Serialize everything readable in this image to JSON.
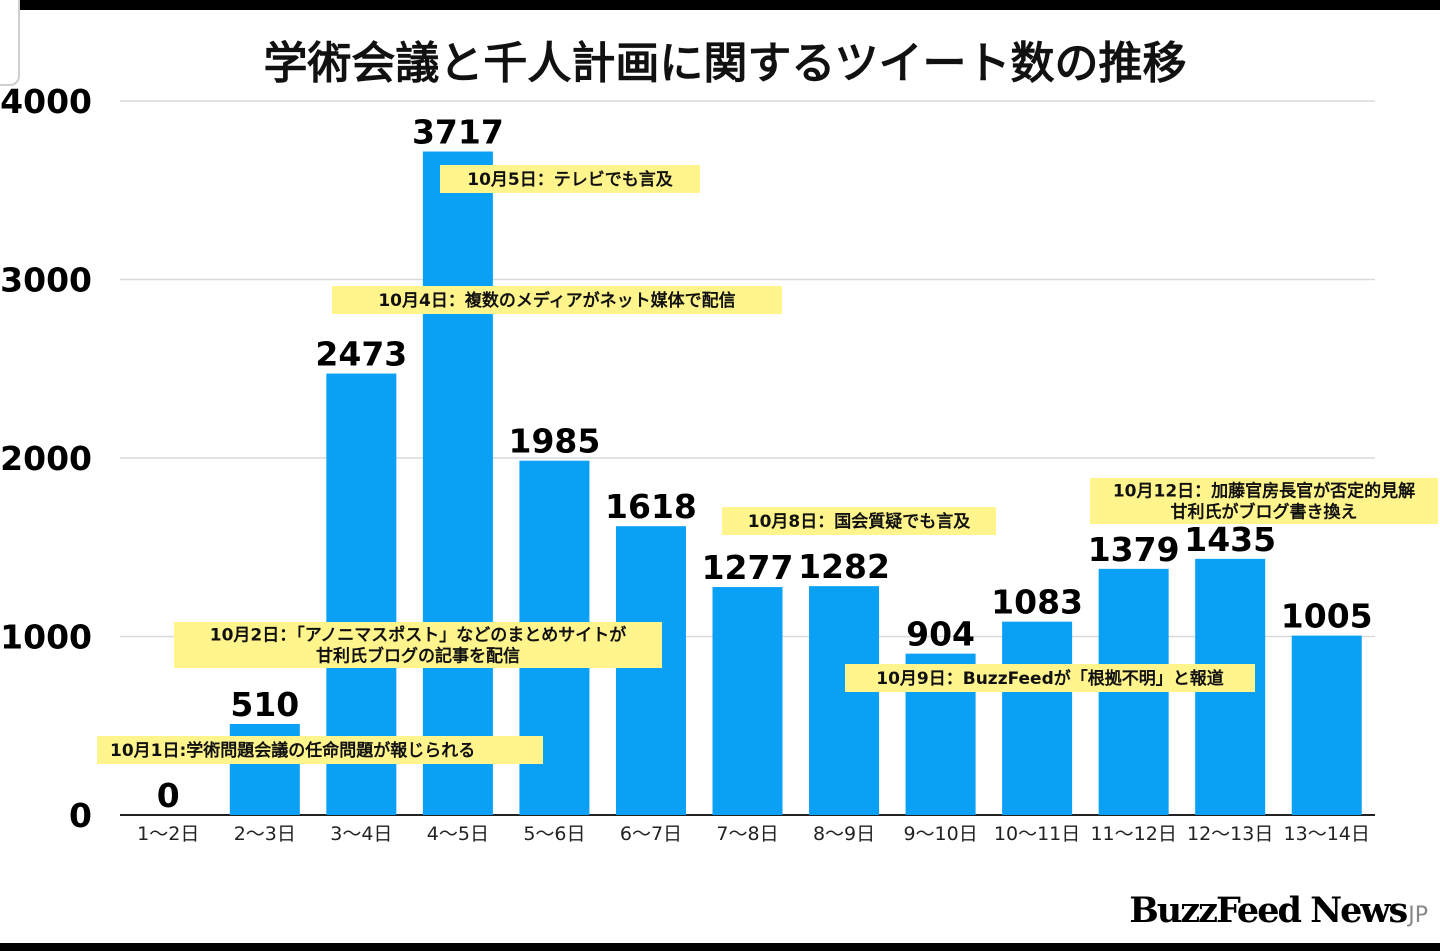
{
  "chart_data": {
    "type": "bar",
    "title": "学術会議と千人計画に関するツイート数の推移",
    "categories": [
      "1〜2日",
      "2〜3日",
      "3〜4日",
      "4〜5日",
      "5〜6日",
      "6〜7日",
      "7〜8日",
      "8〜9日",
      "9〜10日",
      "10〜11日",
      "11〜12日",
      "12〜13日",
      "13〜14日"
    ],
    "values": [
      0,
      510,
      2473,
      3717,
      1985,
      1618,
      1277,
      1282,
      904,
      1083,
      1379,
      1435,
      1005
    ],
    "ylim": [
      0,
      4000
    ],
    "yticks": [
      0,
      1000,
      2000,
      3000,
      4000
    ],
    "grid": true,
    "bar_color": "#0aa0f5",
    "annotation_color": "#fff58c",
    "annotations": [
      {
        "lines": [
          "10月1日:学術問題会議の任命問題が報じられる"
        ],
        "align": "left"
      },
      {
        "lines": [
          "10月2日：「アノニマスポスト」などのまとめサイトが",
          "甘利氏ブログの記事を配信"
        ],
        "align": "center"
      },
      {
        "lines": [
          "10月4日：複数のメディアがネット媒体で配信"
        ],
        "align": "center"
      },
      {
        "lines": [
          "10月5日：テレビでも言及"
        ],
        "align": "center"
      },
      {
        "lines": [
          "10月8日：国会質疑でも言及"
        ],
        "align": "center"
      },
      {
        "lines": [
          "10月9日：BuzzFeedが「根拠不明」と報道"
        ],
        "align": "center"
      },
      {
        "lines": [
          "10月12日：加藤官房長官が否定的見解",
          "甘利氏がブログ書き換え"
        ],
        "align": "center"
      }
    ]
  },
  "logo": {
    "brand": "BuzzFeed News",
    "suffix": "JP"
  }
}
